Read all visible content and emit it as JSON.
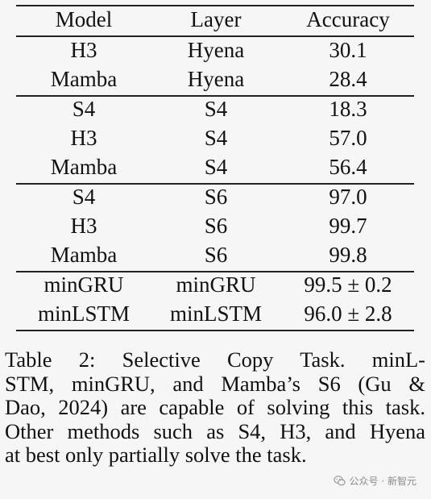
{
  "table": {
    "headers": [
      "Model",
      "Layer",
      "Accuracy"
    ],
    "groups": [
      [
        [
          "H3",
          "Hyena",
          "30.1"
        ],
        [
          "Mamba",
          "Hyena",
          "28.4"
        ]
      ],
      [
        [
          "S4",
          "S4",
          "18.3"
        ],
        [
          "H3",
          "S4",
          "57.0"
        ],
        [
          "Mamba",
          "S4",
          "56.4"
        ]
      ],
      [
        [
          "S4",
          "S6",
          "97.0"
        ],
        [
          "H3",
          "S6",
          "99.7"
        ],
        [
          "Mamba",
          "S6",
          "99.8"
        ]
      ],
      [
        [
          "minGRU",
          "minGRU",
          "99.5 ± 0.2"
        ],
        [
          "minLSTM",
          "minLSTM",
          "96.0 ± 2.8"
        ]
      ]
    ]
  },
  "caption": {
    "lines": [
      "Table 2: Selective Copy Task. minL-",
      "STM, minGRU, and Mamba’s S6 (Gu &",
      "Dao, 2024) are capable of solving this task.",
      "Other methods such as S4, H3, and Hyena",
      "at best only partially solve the task."
    ]
  },
  "watermark": {
    "text": "公众号 · 新智元",
    "icon": "wechat-logo-icon"
  }
}
